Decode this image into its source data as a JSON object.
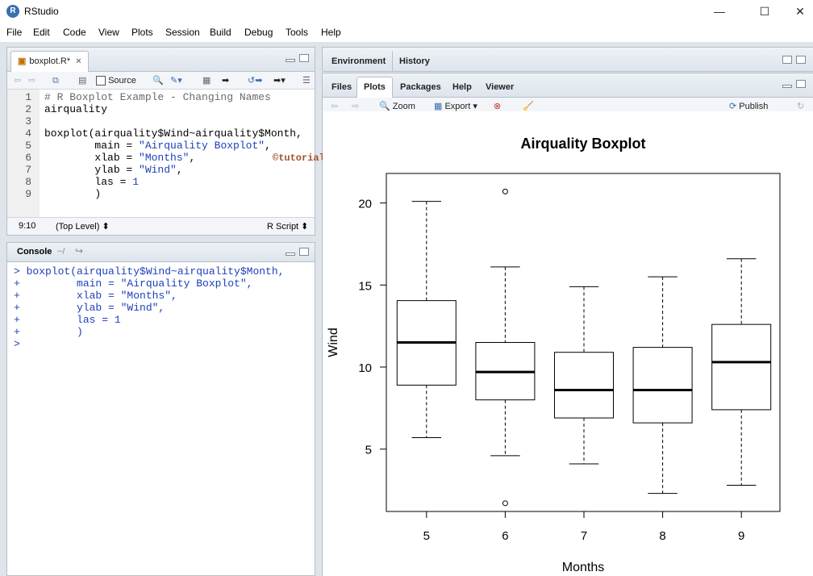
{
  "window": {
    "title": "RStudio",
    "logo_text": "R",
    "minimize": "—",
    "maximize": "☐",
    "close": "✕"
  },
  "menu": [
    "File",
    "Edit",
    "Code",
    "View",
    "Plots",
    "Session",
    "Build",
    "Debug",
    "Tools",
    "Help"
  ],
  "editor": {
    "tab_label": "boxplot.R*",
    "tab_close": "×",
    "source_label": "Source",
    "lines": [
      {
        "num": "1",
        "text": "# R Boxplot Example - Changing Names"
      },
      {
        "num": "2",
        "text": "airquality"
      },
      {
        "num": "3",
        "text": ""
      },
      {
        "num": "4",
        "text": "boxplot(airquality$Wind~airquality$Month,"
      },
      {
        "num": "5",
        "text": "        main = \"Airquality Boxplot\","
      },
      {
        "num": "6",
        "text": "        xlab = \"Months\","
      },
      {
        "num": "7",
        "text": "        ylab = \"Wind\","
      },
      {
        "num": "8",
        "text": "        las = 1"
      },
      {
        "num": "9",
        "text": "        )"
      }
    ],
    "status_position": "9:10",
    "status_scope": "(Top Level) ⬍",
    "status_type": "R Script ⬍"
  },
  "console": {
    "tab_label": "Console",
    "path": "~/",
    "lines": [
      "> boxplot(airquality$Wind~airquality$Month,",
      "+         main = \"Airquality Boxplot\",",
      "+         xlab = \"Months\",",
      "+         ylab = \"Wind\",",
      "+         las = 1",
      "+         )",
      "> "
    ]
  },
  "watermark": "©tutorialgateway.org",
  "env_tabs": [
    "Environment",
    "History"
  ],
  "files_tabs": [
    "Files",
    "Plots",
    "Packages",
    "Help",
    "Viewer"
  ],
  "active_files_tab": "Plots",
  "plots_toolbar": {
    "zoom": "Zoom",
    "export": "Export ▾",
    "publish": "Publish"
  },
  "colors": {
    "comment": "#6a6a6a",
    "string": "#1e3fb8",
    "console": "#1e3fb8",
    "watermark": "#a0522d",
    "accent": "#3a6fb0"
  },
  "chart_data": {
    "type": "boxplot",
    "title": "Airquality Boxplot",
    "xlabel": "Months",
    "ylabel": "Wind",
    "categories": [
      "5",
      "6",
      "7",
      "8",
      "9"
    ],
    "ylim": [
      1.2,
      21.8
    ],
    "yticks": [
      5,
      10,
      15,
      20
    ],
    "boxes": [
      {
        "name": "5",
        "min": 5.7,
        "q1": 8.9,
        "median": 11.5,
        "q3": 14.05,
        "max": 20.1,
        "outliers": []
      },
      {
        "name": "6",
        "min": 4.6,
        "q1": 8.0,
        "median": 9.7,
        "q3": 11.5,
        "max": 16.1,
        "outliers": [
          20.7,
          1.7
        ]
      },
      {
        "name": "7",
        "min": 4.1,
        "q1": 6.9,
        "median": 8.6,
        "q3": 10.9,
        "max": 14.9,
        "outliers": []
      },
      {
        "name": "8",
        "min": 2.3,
        "q1": 6.6,
        "median": 8.6,
        "q3": 11.2,
        "max": 15.5,
        "outliers": []
      },
      {
        "name": "9",
        "min": 2.8,
        "q1": 7.4,
        "median": 10.3,
        "q3": 12.6,
        "max": 16.6,
        "outliers": []
      }
    ]
  }
}
